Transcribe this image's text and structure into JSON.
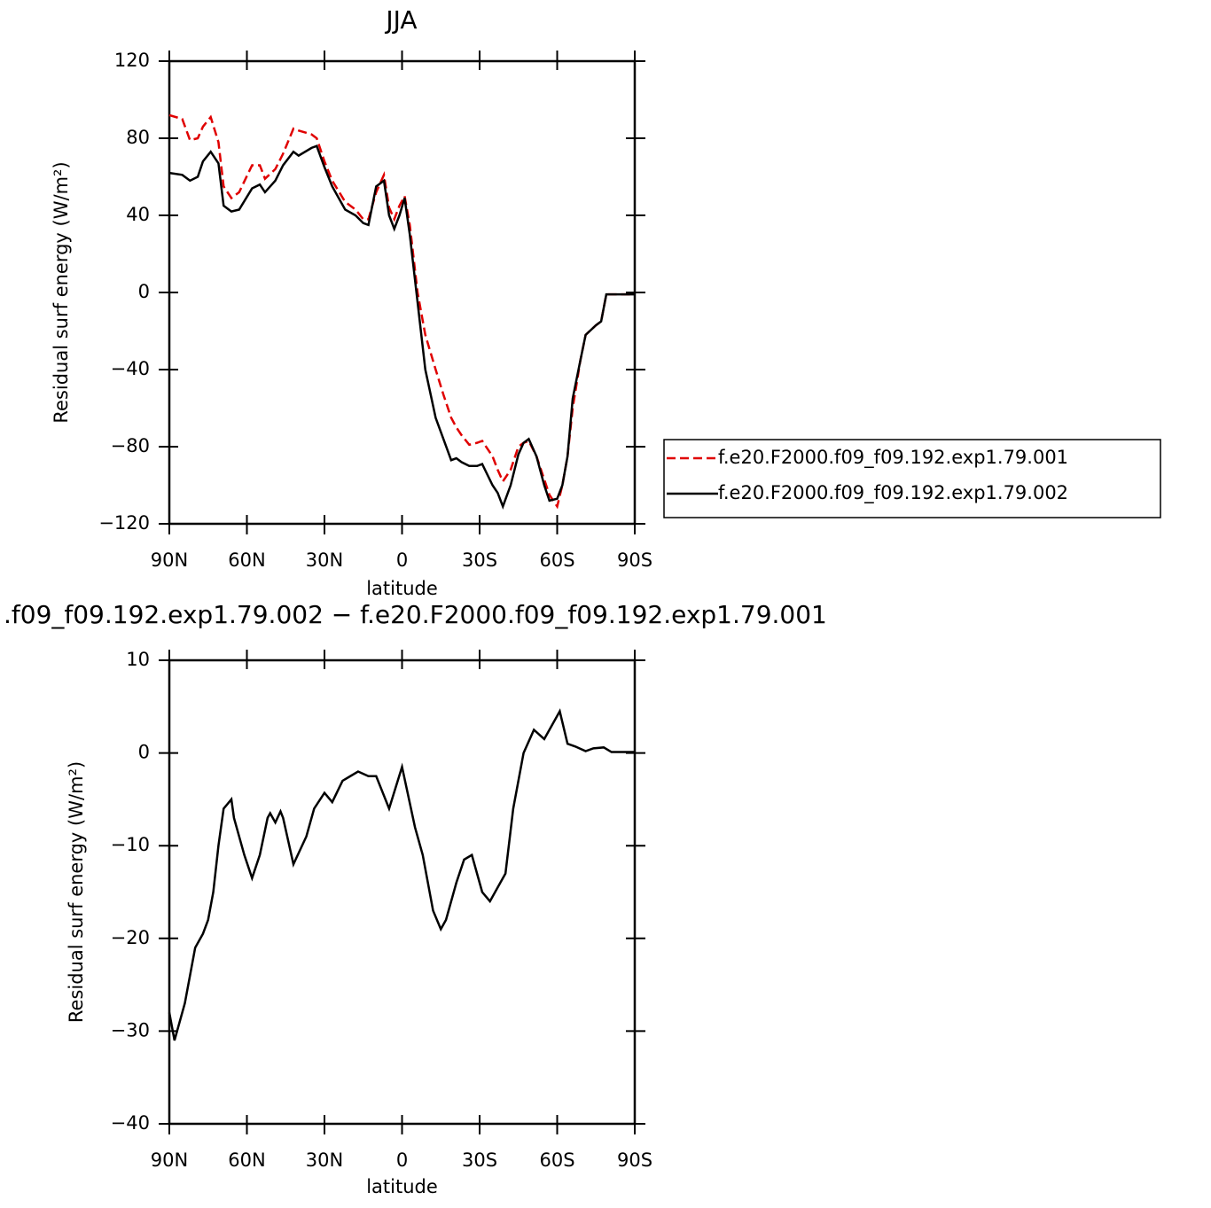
{
  "chart_data": [
    {
      "type": "line",
      "title": "JJA",
      "xlabel": "latitude",
      "ylabel": "Residual surf energy (W/m²)",
      "x": [
        90,
        85,
        82,
        79,
        77,
        74,
        71,
        69,
        66,
        63,
        58,
        55,
        53,
        49,
        46,
        42,
        40,
        35,
        33,
        30,
        27,
        22,
        18,
        15,
        13,
        10,
        7,
        5,
        3,
        1,
        -1,
        -3,
        -6,
        -9,
        -13,
        -16,
        -19,
        -21,
        -23,
        -26,
        -29,
        -31,
        -35,
        -37,
        -39,
        -42,
        -45,
        -47,
        -49,
        -52,
        -55,
        -57,
        -60,
        -62,
        -64,
        -66,
        -69,
        -71,
        -75,
        -77,
        -79,
        -84,
        -90
      ],
      "series": [
        {
          "name": "f.e20.F2000.f09_f09.192.exp1.79.001",
          "color": "#e00000",
          "linestyle": "dashed",
          "values": [
            92,
            90,
            79,
            80,
            86,
            91,
            78,
            55,
            49,
            52,
            66,
            66,
            59,
            64,
            72,
            85,
            84,
            82,
            80,
            68,
            58,
            47,
            43,
            38,
            38,
            52,
            61,
            44,
            38,
            45,
            50,
            35,
            0,
            -22,
            -40,
            -53,
            -65,
            -70,
            -74,
            -79,
            -78,
            -77,
            -85,
            -92,
            -98,
            -92,
            -80,
            -78,
            -77,
            -85,
            -97,
            -105,
            -111,
            -100,
            -85,
            -60,
            -35,
            -22,
            -17,
            -15,
            -1,
            -1,
            -1
          ]
        },
        {
          "name": "f.e20.F2000.f09_f09.192.exp1.79.002",
          "color": "#000000",
          "linestyle": "solid",
          "values": [
            62,
            61,
            58,
            60,
            68,
            73,
            67,
            45,
            42,
            43,
            54,
            56,
            52,
            58,
            66,
            73,
            71,
            75,
            76,
            65,
            55,
            43,
            40,
            36,
            35,
            55,
            58,
            40,
            33,
            40,
            49,
            30,
            -5,
            -40,
            -65,
            -76,
            -87,
            -86,
            -88,
            -90,
            -90,
            -89,
            -100,
            -104,
            -111,
            -100,
            -84,
            -78,
            -76,
            -85,
            -100,
            -108,
            -107,
            -100,
            -85,
            -55,
            -35,
            -22,
            -17,
            -15,
            -1,
            -1,
            -1
          ]
        }
      ],
      "xlim": [
        90,
        -90
      ],
      "xticks": [
        {
          "value": 90,
          "label": "90N"
        },
        {
          "value": 60,
          "label": "60N"
        },
        {
          "value": 30,
          "label": "30N"
        },
        0,
        {
          "value": -30,
          "label": "30S"
        },
        {
          "value": -60,
          "label": "60S"
        },
        {
          "value": -90,
          "label": "90S"
        }
      ],
      "ylim": [
        -120,
        120
      ],
      "yticks": [
        {
          "value": -120,
          "label": "−120"
        },
        {
          "value": -80,
          "label": "−80"
        },
        {
          "value": -40,
          "label": "−40"
        },
        0,
        40,
        80,
        120
      ],
      "legend": "right"
    },
    {
      "type": "line",
      "title": ".f09_f09.192.exp1.79.002 − f.e20.F2000.f09_f09.192.exp1.79.001",
      "xlabel": "latitude",
      "ylabel": "Residual surf energy (W/m²)",
      "x": [
        90,
        88,
        84,
        80,
        77,
        75,
        73,
        71,
        69,
        66,
        65,
        61,
        58,
        55,
        52,
        51,
        49,
        47,
        46,
        42,
        37,
        34,
        30,
        27,
        23,
        20,
        17,
        13,
        10,
        5,
        0,
        -5,
        -8,
        -12,
        -15,
        -17,
        -21,
        -24,
        -27,
        -31,
        -34,
        -38,
        -40,
        -43,
        -47,
        -51,
        -55,
        -61,
        -64,
        -67,
        -71,
        -74,
        -78,
        -81,
        -90
      ],
      "values": [
        -28,
        -31,
        -27,
        -21,
        -19.5,
        -18,
        -15,
        -10,
        -6,
        -5,
        -7,
        -11,
        -13.5,
        -11,
        -7,
        -6.5,
        -7.5,
        -6.3,
        -7,
        -12,
        -9,
        -6,
        -4.3,
        -5.3,
        -3,
        -2.5,
        -2,
        -2.5,
        -2.5,
        -6,
        -1.5,
        -8,
        -11,
        -17,
        -19,
        -18,
        -14,
        -11.5,
        -11,
        -15,
        -16,
        -14,
        -13,
        -6,
        0,
        2.5,
        1.5,
        4.5,
        1,
        0.7,
        0.2,
        0.5,
        0.6,
        0.1,
        0.1
      ],
      "color": "#000000",
      "xlim": [
        90,
        -90
      ],
      "xticks": [
        {
          "value": 90,
          "label": "90N"
        },
        {
          "value": 60,
          "label": "60N"
        },
        {
          "value": 30,
          "label": "30N"
        },
        0,
        {
          "value": -30,
          "label": "30S"
        },
        {
          "value": -60,
          "label": "60S"
        },
        {
          "value": -90,
          "label": "90S"
        }
      ],
      "ylim": [
        -40,
        10
      ],
      "yticks": [
        {
          "value": -40,
          "label": "−40"
        },
        {
          "value": -30,
          "label": "−30"
        },
        {
          "value": -20,
          "label": "−20"
        },
        {
          "value": -10,
          "label": "−10"
        },
        0,
        10
      ]
    }
  ]
}
